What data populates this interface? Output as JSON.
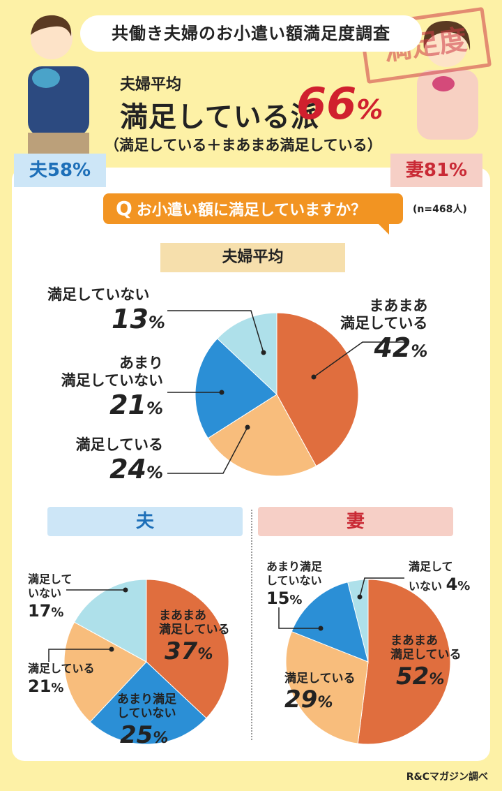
{
  "header": {
    "title": "共働き夫婦のお小遣い額満足度調査",
    "stamp": "満足度",
    "avg_label": "夫婦平均",
    "avg_main": "満足している派",
    "avg_value": "66",
    "avg_unit": "%",
    "avg_note": "（満足している＋まあまあ満足している）",
    "husband_badge": "夫58%",
    "wife_badge": "妻81%"
  },
  "question": {
    "q_mark": "Q",
    "text": "お小遣い額に満足していますか？",
    "n": "(n=468人)"
  },
  "sections": {
    "average": "夫婦平均",
    "husband": "夫",
    "wife": "妻"
  },
  "colors": {
    "satisfied_somewhat": "#e06e3e",
    "satisfied": "#f8bd7c",
    "not_really": "#2b8fd6",
    "not": "#aee0ea",
    "accent_red": "#d0202e",
    "accent_orange": "#f29422"
  },
  "chart_data": [
    {
      "type": "pie",
      "title": "夫婦平均",
      "categories": [
        "まあまあ満足している",
        "満足している",
        "あまり満足していない",
        "満足していない"
      ],
      "values": [
        42,
        24,
        21,
        13
      ],
      "labels": {
        "c0": {
          "line1": "まあまあ",
          "line2": "満足している",
          "pct": "42"
        },
        "c1": {
          "line1": "満足している",
          "pct": "24"
        },
        "c2": {
          "line1": "あまり",
          "line2": "満足していない",
          "pct": "21"
        },
        "c3": {
          "line1": "満足していない",
          "pct": "13"
        }
      }
    },
    {
      "type": "pie",
      "title": "夫",
      "categories": [
        "まあまあ満足している",
        "あまり満足していない",
        "満足している",
        "満足していない"
      ],
      "values": [
        37,
        25,
        21,
        17
      ],
      "labels": {
        "c0": {
          "line1": "まあまあ",
          "line2": "満足している",
          "pct": "37"
        },
        "c1": {
          "line1": "あまり満足",
          "line2": "していない",
          "pct": "25"
        },
        "c2": {
          "line1": "満足している",
          "pct": "21"
        },
        "c3": {
          "line1": "満足して",
          "line2": "いない",
          "pct": "17"
        }
      }
    },
    {
      "type": "pie",
      "title": "妻",
      "categories": [
        "まあまあ満足している",
        "満足している",
        "あまり満足していない",
        "満足していない"
      ],
      "values": [
        52,
        29,
        15,
        4
      ],
      "labels": {
        "c0": {
          "line1": "まあまあ",
          "line2": "満足している",
          "pct": "52"
        },
        "c1": {
          "line1": "満足している",
          "pct": "29"
        },
        "c2": {
          "line1": "あまり満足",
          "line2": "していない",
          "pct": "15"
        },
        "c3": {
          "line1": "満足して",
          "line2": "いない",
          "pct": "4"
        }
      }
    }
  ],
  "pct_unit": "%",
  "credit": "R&Cマガジン調べ"
}
